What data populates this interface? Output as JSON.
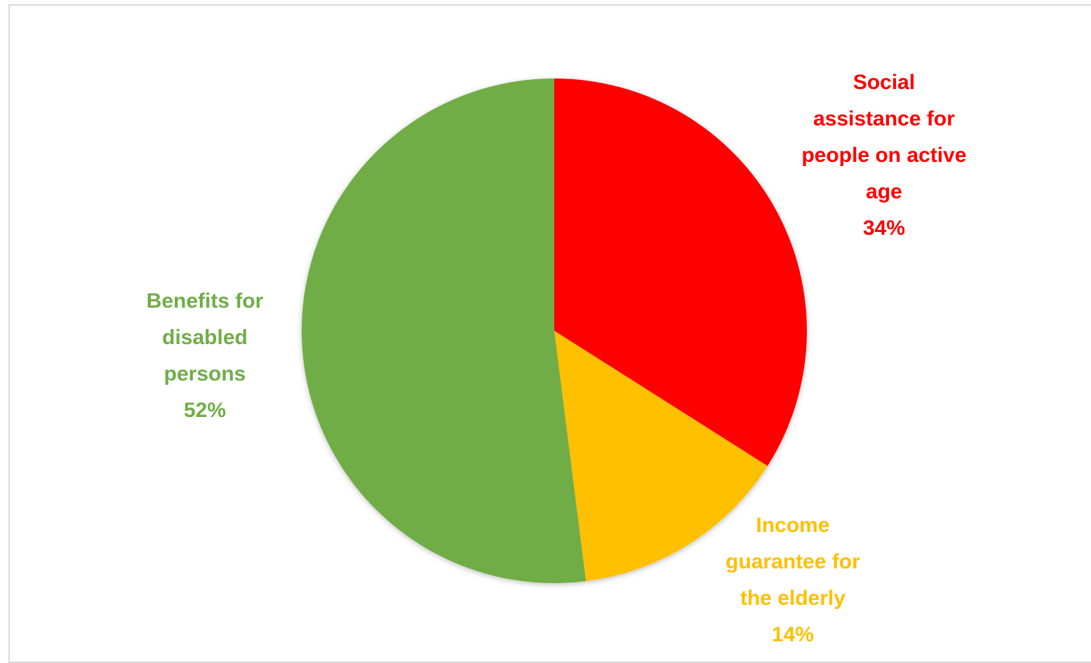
{
  "chart_data": {
    "type": "pie",
    "categories": [
      "Social assistance for people on active age",
      "Income guarantee for the elderly",
      "Benefits for disabled persons"
    ],
    "values": [
      34,
      14,
      52
    ],
    "value_labels": [
      "34%",
      "14%",
      "52%"
    ],
    "colors": [
      "#ff0000",
      "#ffc000",
      "#70ad47"
    ]
  }
}
